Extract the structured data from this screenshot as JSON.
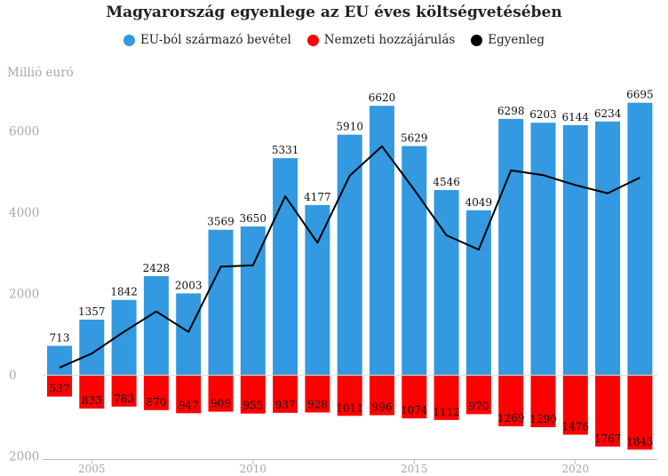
{
  "title": "Magyarország egyenlege az EU éves költségvetésében",
  "legend": [
    {
      "label": "EU-ból származó bevétel",
      "color": "#3399e0"
    },
    {
      "label": "Nemzeti hozzájárulás",
      "color": "#ff0000"
    },
    {
      "label": "Egyenleg",
      "color": "#000000"
    }
  ],
  "unit_label": "Millió euró",
  "chart_data": {
    "type": "bar",
    "title": "Magyarország egyenlege az EU éves költségvetésében",
    "ylabel": "Millió euró",
    "categories": [
      2004,
      2005,
      2006,
      2007,
      2008,
      2009,
      2010,
      2011,
      2012,
      2013,
      2014,
      2015,
      2016,
      2017,
      2018,
      2019,
      2020,
      2021,
      2022
    ],
    "x_tick_labels": [
      "2005",
      "2010",
      "2015",
      "2020"
    ],
    "x_ticks": [
      2005,
      2010,
      2015,
      2020
    ],
    "y_tick_labels": [
      "0",
      "2000",
      "4000",
      "6000",
      "2000"
    ],
    "y_ticks": [
      0,
      2000,
      4000,
      6000,
      -2000
    ],
    "ylim": [
      -2000,
      6700
    ],
    "legend_position": "top-center",
    "grid": false,
    "series": [
      {
        "name": "EU-ból származó bevétel",
        "color": "#3399e0",
        "values": [
          713,
          1357,
          1842,
          2428,
          2003,
          3569,
          3650,
          5331,
          4177,
          5910,
          6620,
          5629,
          4546,
          4049,
          6298,
          6203,
          6144,
          6234,
          6695
        ]
      },
      {
        "name": "Nemzeti hozzájárulás",
        "color": "#ff0000",
        "values": [
          537,
          833,
          783,
          870,
          947,
          909,
          955,
          937,
          928,
          1011,
          996,
          1074,
          1112,
          970,
          1269,
          1290,
          1476,
          1767,
          1843
        ]
      },
      {
        "name": "Egyenleg",
        "color": "#000000",
        "type": "line",
        "values": [
          176,
          524,
          1059,
          1558,
          1056,
          2660,
          2695,
          4394,
          3249,
          4899,
          5624,
          4555,
          3434,
          3079,
          5029,
          4913,
          4668,
          4467,
          4852
        ]
      }
    ]
  }
}
